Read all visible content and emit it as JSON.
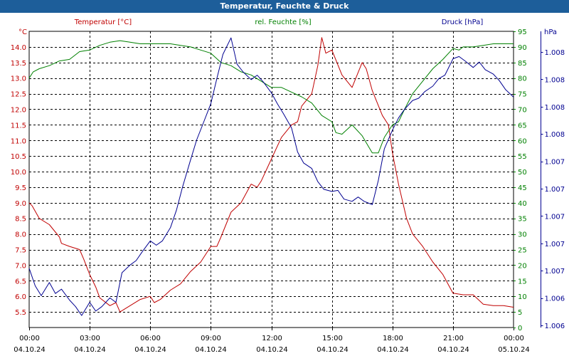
{
  "window": {
    "title": "Temperatur, Feuchte & Druck"
  },
  "colors": {
    "temperature": "#c00000",
    "humidity": "#008000",
    "pressure": "#000090",
    "titlebar": "#1d5e9a"
  },
  "chart_data": {
    "type": "line",
    "title": "Temperatur, Feuchte & Druck",
    "grid": true,
    "x_ticks": [
      {
        "time": "00:00",
        "date": "04.10.24"
      },
      {
        "time": "03:00",
        "date": "04.10.24"
      },
      {
        "time": "06:00",
        "date": "04.10.24"
      },
      {
        "time": "09:00",
        "date": "04.10.24"
      },
      {
        "time": "12:00",
        "date": "04.10.24"
      },
      {
        "time": "15:00",
        "date": "04.10.24"
      },
      {
        "time": "18:00",
        "date": "04.10.24"
      },
      {
        "time": "21:00",
        "date": "04.10.24"
      },
      {
        "time": "00:00",
        "date": "05.10.24"
      }
    ],
    "x_range_hours": [
      0,
      24
    ],
    "axes": {
      "temperature": {
        "unit": "°C",
        "label": "Temperatur [°C]",
        "range": [
          5.0,
          14.5
        ],
        "ticks": [
          "5.5",
          "6.0",
          "6.5",
          "7.0",
          "7.5",
          "8.0",
          "8.5",
          "9.0",
          "9.5",
          "10.0",
          "10.5",
          "11.0",
          "11.5",
          "12.0",
          "12.5",
          "13.0",
          "13.5",
          "14.0"
        ]
      },
      "humidity": {
        "unit": "%",
        "label": "rel. Feuchte [%]",
        "range": [
          0,
          95
        ],
        "ticks": [
          "0",
          "5",
          "10",
          "15",
          "20",
          "25",
          "30",
          "35",
          "40",
          "45",
          "50",
          "55",
          "60",
          "65",
          "70",
          "75",
          "80",
          "85",
          "90",
          "95"
        ]
      },
      "pressure": {
        "unit": "hPa",
        "label": "Druck [hPa]",
        "range": [
          1005.95,
          1008.65
        ],
        "ticks": [
          "1.006",
          "1.006",
          "1.007",
          "1.007",
          "1.007",
          "1.007",
          "1.007",
          "1.008",
          "1.008",
          "1.008",
          "1.008"
        ]
      }
    },
    "series": [
      {
        "name": "Temperatur [°C]",
        "axis": "temperature",
        "x": [
          0,
          0.15,
          0.5,
          1,
          1.5,
          1.6,
          2,
          2.5,
          2.7,
          3,
          3.3,
          3.5,
          4,
          4.3,
          4.5,
          5,
          5.5,
          6,
          6.2,
          6.5,
          7,
          7.5,
          8,
          8.5,
          9,
          9.3,
          9.5,
          10,
          10.5,
          11,
          11.3,
          11.5,
          12,
          12.5,
          13,
          13.3,
          13.5,
          14,
          14.3,
          14.5,
          14.7,
          15,
          15.5,
          16,
          16.5,
          16.7,
          17,
          17.5,
          17.8,
          18,
          18.3,
          18.7,
          19,
          19.5,
          20,
          20.5,
          21,
          21.5,
          22,
          22.5,
          23,
          23.5,
          24
        ],
        "y": [
          9.0,
          8.9,
          8.5,
          8.3,
          7.9,
          7.7,
          7.6,
          7.5,
          7.2,
          6.7,
          6.3,
          5.95,
          5.7,
          5.8,
          5.5,
          5.7,
          5.9,
          6.0,
          5.8,
          5.9,
          6.2,
          6.4,
          6.8,
          7.1,
          7.6,
          7.6,
          7.9,
          8.7,
          9.0,
          9.6,
          9.5,
          9.7,
          10.4,
          11.1,
          11.5,
          11.6,
          12.1,
          12.5,
          13.4,
          14.3,
          13.8,
          13.9,
          13.1,
          12.7,
          13.5,
          13.3,
          12.6,
          11.8,
          11.5,
          10.6,
          9.6,
          8.5,
          8.0,
          7.6,
          7.1,
          6.7,
          6.1,
          6.05,
          6.05,
          5.75,
          5.7,
          5.7,
          5.65
        ]
      },
      {
        "name": "rel. Feuchte [%]",
        "axis": "humidity",
        "x": [
          0,
          0.2,
          0.5,
          1,
          1.5,
          2,
          2.5,
          3,
          3.5,
          4,
          4.5,
          5,
          5.5,
          6,
          6.5,
          7,
          7.5,
          8,
          8.5,
          9,
          9.5,
          10,
          10.5,
          11,
          11.5,
          12,
          12.5,
          13,
          13.5,
          14,
          14.5,
          15,
          15.2,
          15.5,
          16,
          16.5,
          17,
          17.3,
          17.6,
          18,
          18.3,
          18.6,
          19,
          19.5,
          20,
          20.5,
          21,
          21.3,
          21.5,
          22,
          22.5,
          23,
          23.5,
          24
        ],
        "y": [
          80,
          82,
          83,
          84,
          85.5,
          86,
          88.5,
          89,
          90.5,
          91.5,
          92,
          91.5,
          91,
          91,
          91,
          91,
          90.5,
          90,
          89,
          88,
          85,
          84,
          82,
          81,
          79,
          77,
          77,
          75.5,
          74,
          72,
          68,
          66,
          62.5,
          62,
          65,
          61.5,
          56,
          56,
          61,
          65,
          66,
          70,
          75,
          79,
          83,
          86,
          89.5,
          89,
          90,
          90,
          90.5,
          91,
          91,
          91
        ]
      },
      {
        "name": "Druck [hPa]",
        "axis": "pressure",
        "x": [
          0,
          0.3,
          0.6,
          1,
          1.3,
          1.6,
          2,
          2.3,
          2.6,
          3,
          3.3,
          3.6,
          4,
          4.3,
          4.6,
          5,
          5.3,
          5.6,
          6,
          6.3,
          6.6,
          7,
          7.3,
          7.6,
          8,
          8.3,
          8.6,
          9,
          9.3,
          9.6,
          10,
          10.3,
          10.6,
          11,
          11.3,
          11.6,
          12,
          12.3,
          12.6,
          13,
          13.3,
          13.6,
          14,
          14.3,
          14.6,
          15,
          15.3,
          15.6,
          16,
          16.3,
          16.6,
          17,
          17.3,
          17.6,
          18,
          18.3,
          18.6,
          19,
          19.3,
          19.6,
          20,
          20.3,
          20.6,
          21,
          21.3,
          21.6,
          22,
          22.3,
          22.6,
          23,
          23.3,
          23.6,
          24
        ],
        "y": [
          1006.49,
          1006.33,
          1006.24,
          1006.36,
          1006.26,
          1006.3,
          1006.2,
          1006.14,
          1006.06,
          1006.18,
          1006.1,
          1006.14,
          1006.22,
          1006.18,
          1006.45,
          1006.52,
          1006.56,
          1006.64,
          1006.74,
          1006.7,
          1006.74,
          1006.86,
          1007.02,
          1007.23,
          1007.48,
          1007.66,
          1007.8,
          1007.99,
          1008.22,
          1008.44,
          1008.59,
          1008.35,
          1008.28,
          1008.21,
          1008.25,
          1008.19,
          1008.09,
          1007.99,
          1007.9,
          1007.77,
          1007.55,
          1007.45,
          1007.4,
          1007.28,
          1007.21,
          1007.19,
          1007.2,
          1007.12,
          1007.1,
          1007.14,
          1007.1,
          1007.07,
          1007.29,
          1007.58,
          1007.75,
          1007.86,
          1007.94,
          1008.02,
          1008.04,
          1008.1,
          1008.15,
          1008.22,
          1008.25,
          1008.4,
          1008.42,
          1008.38,
          1008.32,
          1008.37,
          1008.3,
          1008.26,
          1008.2,
          1008.12,
          1008.05
        ]
      }
    ]
  }
}
